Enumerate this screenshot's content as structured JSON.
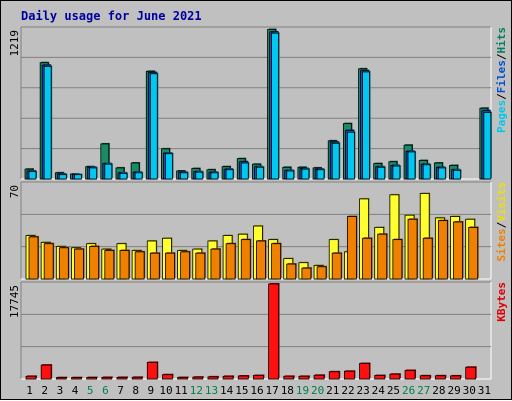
{
  "chart_data": {
    "type": "bar",
    "title": "Daily usage for June 2021",
    "x": [
      "1",
      "2",
      "3",
      "4",
      "5",
      "6",
      "7",
      "8",
      "9",
      "10",
      "11",
      "12",
      "13",
      "14",
      "15",
      "16",
      "17",
      "18",
      "19",
      "20",
      "21",
      "22",
      "23",
      "24",
      "25",
      "26",
      "27",
      "28",
      "29",
      "30",
      "31"
    ],
    "weekend_days": [
      "5",
      "6",
      "12",
      "13",
      "19",
      "20",
      "26",
      "27"
    ],
    "panels": [
      {
        "axis_max_label": "1219",
        "ymax": 1219,
        "right_labels": [
          {
            "text": "Pages",
            "color": "#00c8e8"
          },
          {
            "text": "Files",
            "color": "#0050d0"
          },
          {
            "text": "Hits",
            "color": "#008060"
          }
        ],
        "series": [
          {
            "name": "Hits",
            "color": "#1b8a66",
            "values": [
              80,
              945,
              50,
              40,
              100,
              285,
              90,
              130,
              875,
              245,
              65,
              85,
              75,
              100,
              165,
              120,
              1215,
              95,
              95,
              90,
              310,
              450,
              895,
              125,
              140,
              275,
              150,
              130,
              110,
              null,
              575
            ]
          },
          {
            "name": "Files",
            "color": "#1a4ec8",
            "values": [
              65,
              925,
              40,
              35,
              95,
              125,
              50,
              55,
              865,
              210,
              55,
              60,
              55,
              80,
              140,
              100,
              1195,
              70,
              85,
              80,
              300,
              395,
              880,
              100,
              110,
              225,
              120,
              95,
              75,
              null,
              555
            ]
          },
          {
            "name": "Pages",
            "color": "#00c8f0",
            "values": [
              60,
              915,
              35,
              35,
              90,
              120,
              45,
              50,
              855,
              205,
              50,
              55,
              50,
              75,
              130,
              95,
              1185,
              65,
              80,
              75,
              290,
              380,
              870,
              95,
              105,
              220,
              115,
              90,
              70,
              null,
              540
            ]
          }
        ]
      },
      {
        "axis_max_label": "70",
        "ymax": 70,
        "right_labels": [
          {
            "text": "Sites",
            "color": "#f08000"
          },
          {
            "text": "Visits",
            "color": "#f0e000"
          }
        ],
        "series": [
          {
            "name": "Visits",
            "color": "#ffff30",
            "values": [
              32,
              27,
              24,
              23,
              26,
              22,
              26,
              21,
              28,
              30,
              21,
              22,
              28,
              32,
              33,
              39,
              29,
              15,
              12,
              10,
              29,
              20,
              59,
              38,
              62,
              47,
              63,
              45,
              46,
              44,
              null
            ]
          },
          {
            "name": "Sites",
            "color": "#f08000",
            "values": [
              31,
              26,
              23,
              22,
              24,
              21,
              21,
              20,
              19,
              19,
              20,
              19,
              22,
              26,
              29,
              28,
              26,
              11,
              8,
              9,
              19,
              46,
              30,
              33,
              29,
              44,
              30,
              43,
              42,
              38,
              null
            ]
          }
        ]
      },
      {
        "axis_max_label": "17745",
        "ymax": 17745,
        "right_labels": [
          {
            "text": "KBytes",
            "color": "#e00000"
          }
        ],
        "series": [
          {
            "name": "KBytes",
            "color": "#ff1010",
            "values": [
              500,
              2600,
              250,
              250,
              270,
              300,
              300,
              320,
              3100,
              800,
              280,
              350,
              400,
              500,
              560,
              660,
              17745,
              500,
              500,
              700,
              1350,
              1450,
              2900,
              650,
              900,
              1600,
              600,
              600,
              580,
              2200,
              null
            ]
          }
        ]
      }
    ]
  }
}
